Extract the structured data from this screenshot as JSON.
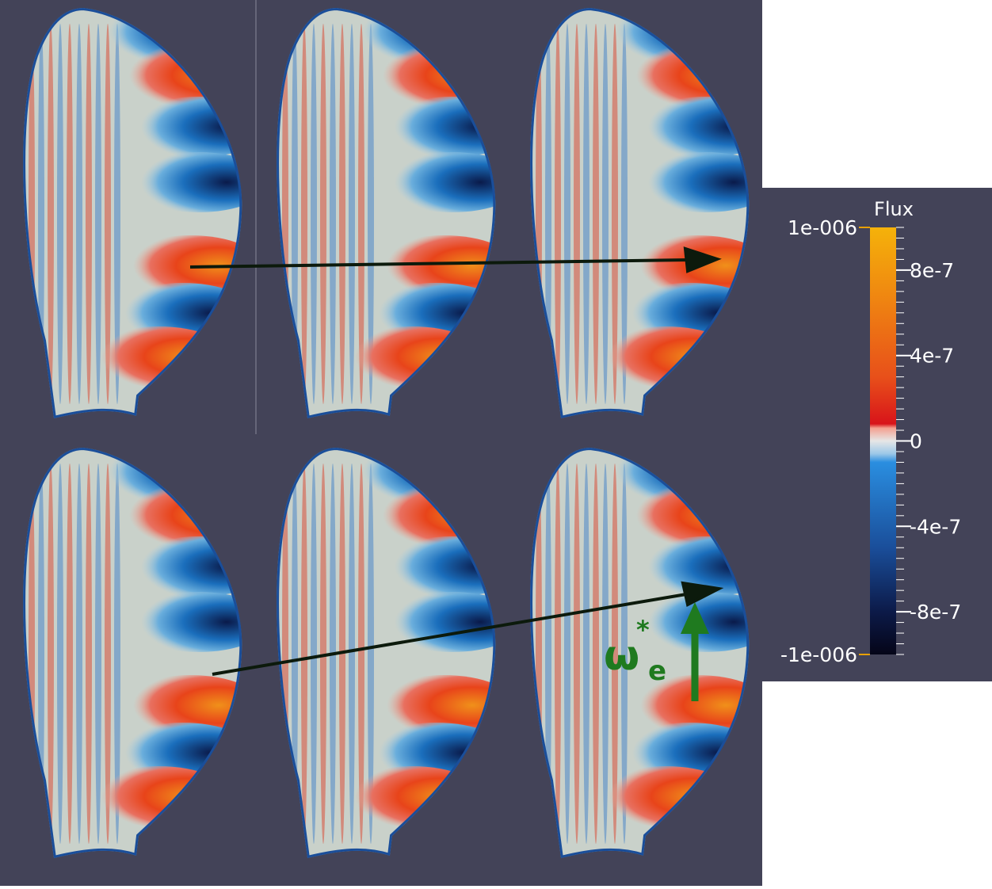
{
  "colorbar": {
    "title": "Flux",
    "lim": [
      -1e-06,
      1e-06
    ],
    "ticks": [
      {
        "value": 1e-06,
        "label": "1e-006"
      },
      {
        "value": 8e-07,
        "label": "8e-7"
      },
      {
        "value": 4e-07,
        "label": "4e-7"
      },
      0,
      {
        "value": -4e-07,
        "label": "-4e-7"
      },
      {
        "value": -8e-07,
        "label": "-8e-7"
      },
      {
        "value": -1e-06,
        "label": "-1e-006"
      }
    ]
  },
  "annotation": {
    "symbol": "ω",
    "superscript": "*",
    "subscript": "e"
  }
}
